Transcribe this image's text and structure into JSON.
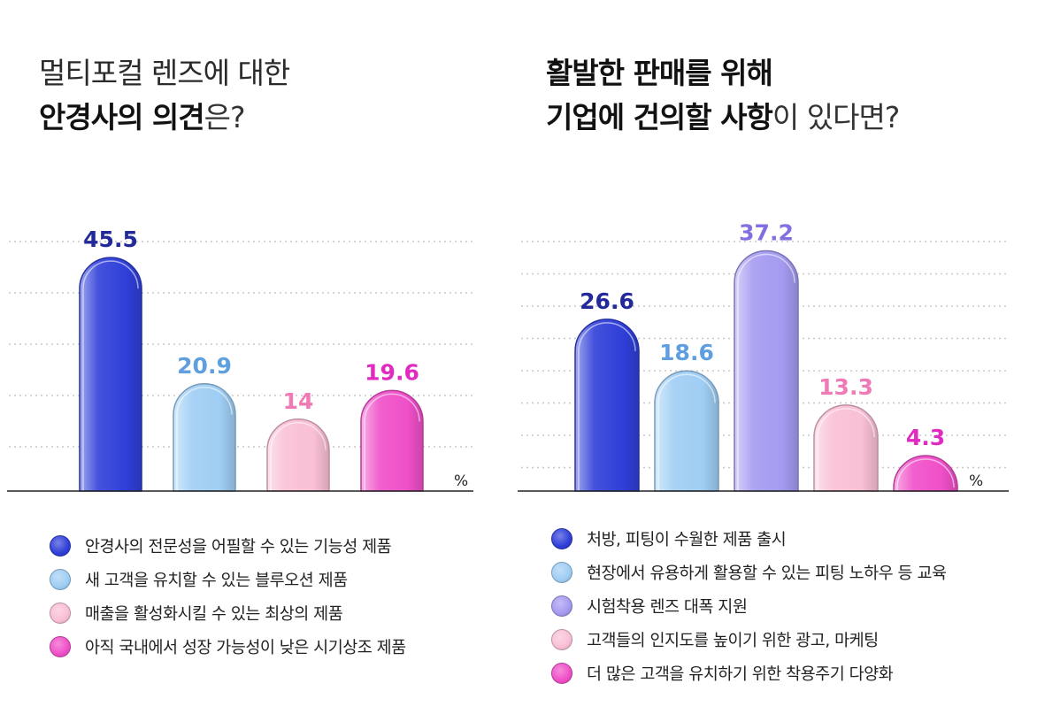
{
  "charts": [
    {
      "id": "left",
      "title_line1": "멀티포컬 렌즈에 대한",
      "title_line2_bold": "안경사의 의견",
      "title_line2_rest": "은?",
      "unit": "%",
      "chart_data": {
        "type": "bar",
        "title": "멀티포컬 렌즈에 대한 안경사의 의견은?",
        "categories": [
          "안경사의 전문성을 어필할 수 있는 기능성 제품",
          "새 고객을 유치할 수 있는 블루오션 제품",
          "매출을 활성화시킬 수 있는 최상의 제품",
          "아직 국내에서 성장 가능성이 낮은 시기상조 제품"
        ],
        "values": [
          45.5,
          20.9,
          14,
          19.6
        ],
        "value_labels": [
          "45.5",
          "20.9",
          "14",
          "19.6"
        ],
        "colors": [
          "#2f3fd8",
          "#9fcdf4",
          "#f9bfd6",
          "#ef4fc8"
        ],
        "label_colors": [
          "#222a9a",
          "#5f9fe0",
          "#f07ab6",
          "#e02ac0"
        ],
        "ylim": [
          0,
          50
        ],
        "gridlines": 5,
        "ylabel": "%"
      }
    },
    {
      "id": "right",
      "title_line1": "활발한 판매를 위해",
      "title_line2_bold1": "기업에 건의할 ",
      "title_line2_bold2": "사항",
      "title_line2_rest": "이 있다면?",
      "unit": "%",
      "chart_data": {
        "type": "bar",
        "title": "활발한 판매를 위해 기업에 건의할 사항이 있다면?",
        "categories": [
          "처방, 피팅이 수월한 제품 출시",
          "현장에서 유용하게 활용할 수 있는 피팅 노하우 등 교육",
          "시험착용 렌즈 대폭 지원",
          "고객들의 인지도를 높이기 위한 광고, 마케팅",
          "더 많은 고객을 유치하기 위한 착용주기 다양화"
        ],
        "values": [
          26.6,
          18.6,
          37.2,
          13.3,
          4.3
        ],
        "value_labels": [
          "26.6",
          "18.6",
          "37.2",
          "13.3",
          "4.3"
        ],
        "colors": [
          "#2f3fd8",
          "#9fcdf4",
          "#a49af0",
          "#f9bfd6",
          "#ef4fc8"
        ],
        "label_colors": [
          "#222a9a",
          "#5f9fe0",
          "#8070e0",
          "#f07ab6",
          "#e02ac0"
        ],
        "ylim": [
          0,
          40
        ],
        "gridlines": 8,
        "ylabel": "%"
      }
    }
  ]
}
